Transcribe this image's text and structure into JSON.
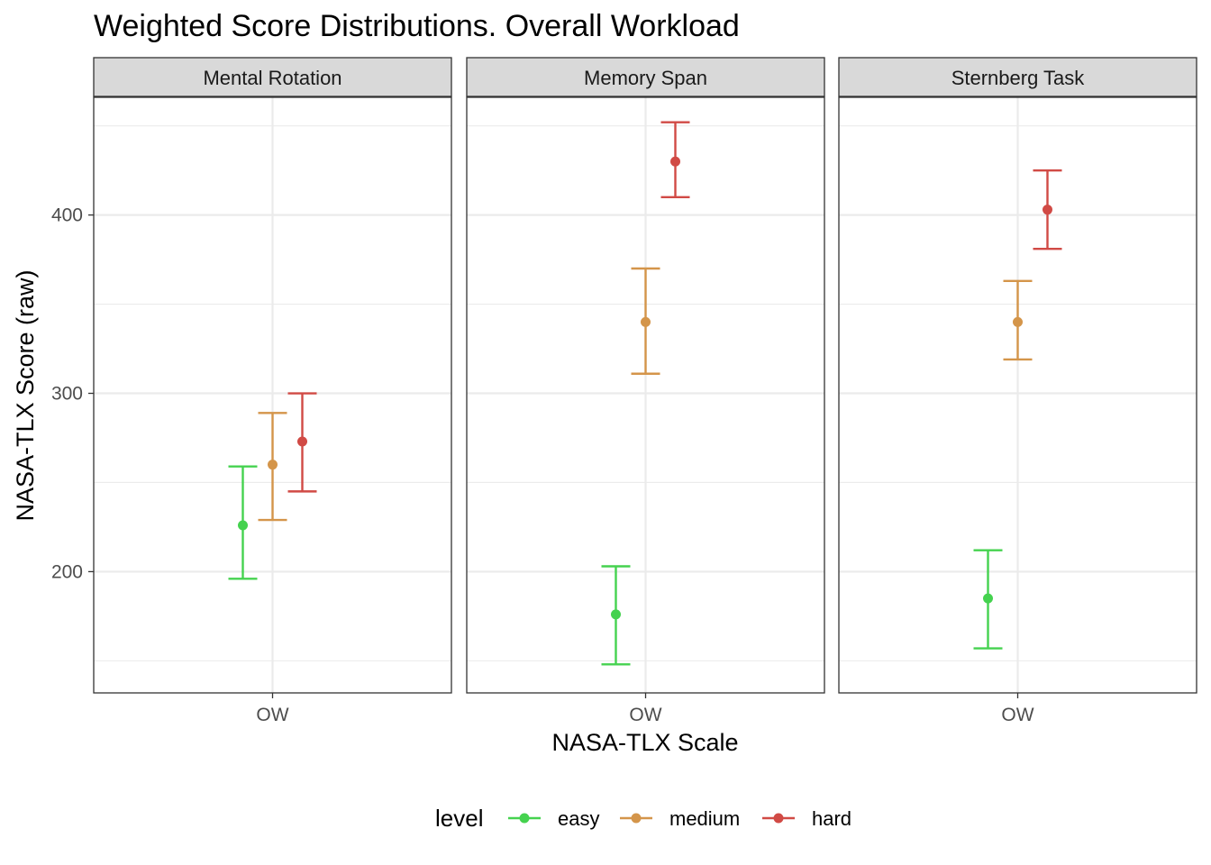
{
  "chart_data": {
    "type": "errorbar",
    "title": "Weighted Score Distributions. Overall Workload",
    "xlabel": "NASA-TLX Scale",
    "ylabel": "NASA-TLX Score (raw)",
    "ylim": [
      132,
      466
    ],
    "yticks": [
      200,
      300,
      400
    ],
    "grid": true,
    "legend_position": "bottom",
    "legend_title": "level",
    "levels": [
      {
        "name": "easy",
        "color": "#45d24f"
      },
      {
        "name": "medium",
        "color": "#d4954a"
      },
      {
        "name": "hard",
        "color": "#d14a45"
      }
    ],
    "facets": [
      {
        "label": "Mental Rotation",
        "x_tick": "OW",
        "points": [
          {
            "level": "easy",
            "y": 226,
            "ymin": 196,
            "ymax": 259
          },
          {
            "level": "medium",
            "y": 260,
            "ymin": 229,
            "ymax": 289
          },
          {
            "level": "hard",
            "y": 273,
            "ymin": 245,
            "ymax": 300
          }
        ]
      },
      {
        "label": "Memory Span",
        "x_tick": "OW",
        "points": [
          {
            "level": "easy",
            "y": 176,
            "ymin": 148,
            "ymax": 203
          },
          {
            "level": "medium",
            "y": 340,
            "ymin": 311,
            "ymax": 370
          },
          {
            "level": "hard",
            "y": 430,
            "ymin": 410,
            "ymax": 452
          }
        ]
      },
      {
        "label": "Sternberg Task",
        "x_tick": "OW",
        "points": [
          {
            "level": "easy",
            "y": 185,
            "ymin": 157,
            "ymax": 212
          },
          {
            "level": "medium",
            "y": 340,
            "ymin": 319,
            "ymax": 363
          },
          {
            "level": "hard",
            "y": 403,
            "ymin": 381,
            "ymax": 425
          }
        ]
      }
    ]
  }
}
